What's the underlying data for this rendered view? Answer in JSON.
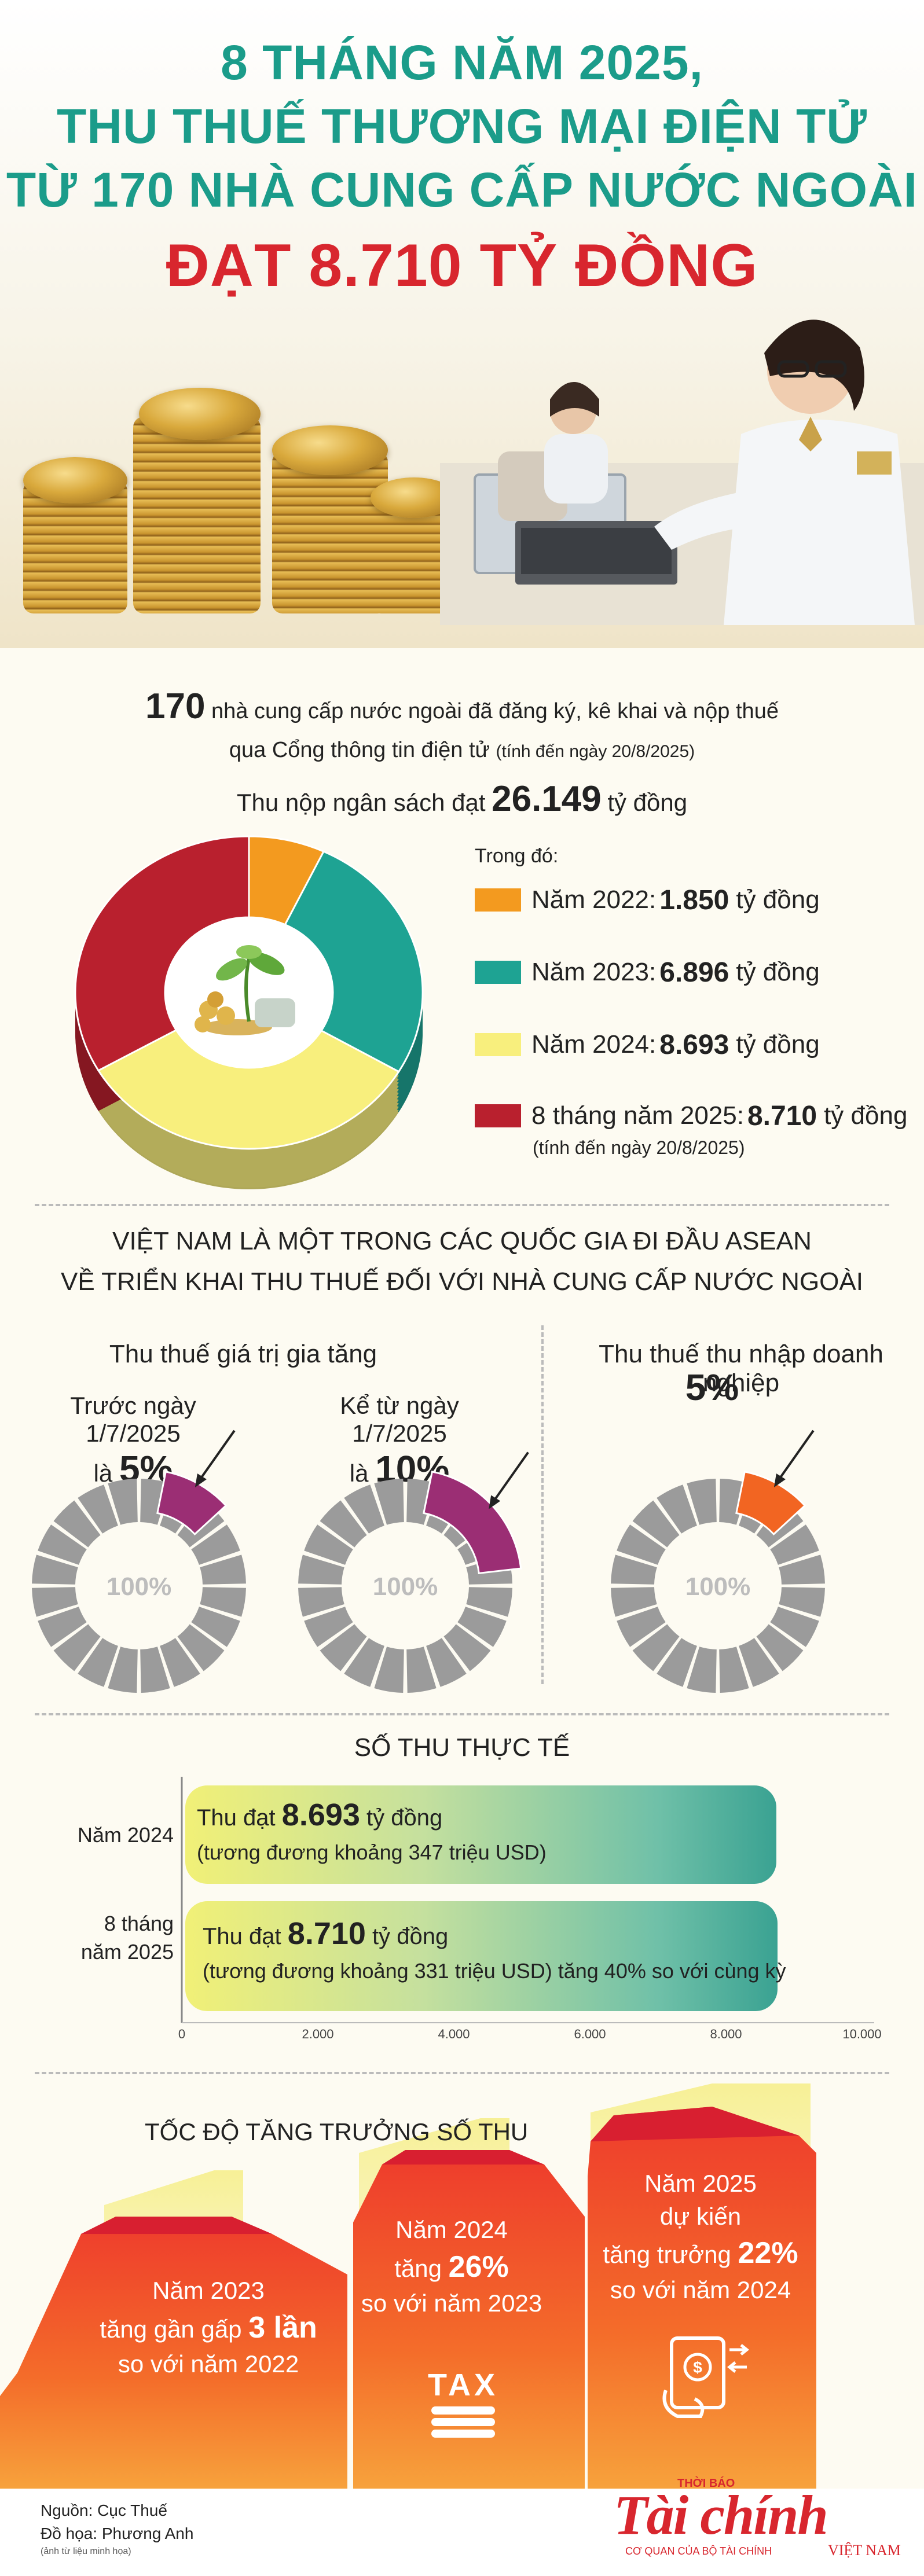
{
  "header": {
    "title_lines": [
      "8 THÁNG NĂM 2025,",
      "THU THUẾ THƯƠNG MẠI ĐIỆN TỬ",
      "TỪ 170 NHÀ CUNG CẤP NƯỚC NGOÀI"
    ],
    "headline": "ĐẠT 8.710 TỶ ĐỒNG"
  },
  "intro": {
    "count": "170",
    "line1_rest": "nhà cung cấp nước ngoài đã đăng ký, kê khai và nộp thuế",
    "line2": "qua Cổng thông tin điện tử",
    "line2_note": "(tính đến ngày 20/8/2025)",
    "revenue_prefix": "Thu nộp ngân sách đạt",
    "revenue_value": "26.149",
    "revenue_unit": "tỷ đồng"
  },
  "chart_data": {
    "type": "pie",
    "title": "",
    "categories": [
      "Năm 2022",
      "Năm 2023",
      "Năm 2024",
      "8 tháng năm 2025"
    ],
    "values": [
      1850,
      6896,
      8693,
      8710
    ],
    "unit": "tỷ đồng",
    "colors": [
      "#f39a1f",
      "#1ea393",
      "#f8ef7d",
      "#b9202e"
    ]
  },
  "legend": {
    "heading": "Trong đó:",
    "items": [
      {
        "label": "Năm 2022:",
        "value": "1.850",
        "unit": "tỷ đồng"
      },
      {
        "label": "Năm 2023:",
        "value": "6.896",
        "unit": "tỷ đồng"
      },
      {
        "label": "Năm 2024:",
        "value": "8.693",
        "unit": "tỷ đồng"
      },
      {
        "label": "8 tháng năm 2025:",
        "value": "8.710",
        "unit": "tỷ đồng"
      }
    ],
    "note": "(tính đến ngày 20/8/2025)"
  },
  "asean": {
    "title_line1": "VIỆT NAM LÀ MỘT TRONG CÁC QUỐC GIA ĐI ĐẦU ASEAN",
    "title_line2": "VỀ TRIỂN KHAI THU THUẾ ĐỐI VỚI NHÀ CUNG CẤP NƯỚC NGOÀI",
    "vat_title": "Thu thuế giá trị gia tăng",
    "cit_title": "Thu thuế thu nhập doanh nghiệp",
    "donuts": [
      {
        "caption": "Trước ngày 1/7/2025",
        "prefix": "là",
        "rate": "5%",
        "center": "100%",
        "rate_value": 5,
        "color": "#9b2e74"
      },
      {
        "caption": "Kể từ ngày 1/7/2025",
        "prefix": "là",
        "rate": "10%",
        "center": "100%",
        "rate_value": 10,
        "color": "#9b2e74"
      },
      {
        "caption": "",
        "prefix": "",
        "rate": "5%",
        "center": "100%",
        "rate_value": 5,
        "color": "#f26522"
      }
    ]
  },
  "actual": {
    "title": "SỐ THU THỰC TẾ",
    "rows": [
      {
        "label": "Năm 2024",
        "prefix": "Thu đạt",
        "value": "8.693",
        "unit": "tỷ đồng",
        "sub": "(tương đương khoảng 347 triệu USD)",
        "amount": 8693
      },
      {
        "label": "8 tháng năm 2025",
        "prefix": "Thu đạt",
        "value": "8.710",
        "unit": "tỷ đồng",
        "sub": "(tương đương khoảng 331 triệu USD) tăng 40% so với cùng kỳ",
        "amount": 8710
      }
    ],
    "axis_ticks": [
      "0",
      "2.000",
      "4.000",
      "6.000",
      "8.000",
      "10.000"
    ],
    "axis_max": 10000
  },
  "growth": {
    "title": "TỐC ĐỘ TĂNG TRƯỞNG SỐ THU",
    "items": [
      {
        "line1": "Năm 2023",
        "line2_pre": "tăng gần gấp",
        "line2_bold": "3 lần",
        "line3": "so với năm 2022"
      },
      {
        "line1": "Năm 2024",
        "line2_pre": "tăng",
        "line2_bold": "26%",
        "line3": "so với năm 2023"
      },
      {
        "line1": "Năm 2025",
        "line1b": "dự kiến",
        "line2_pre": "tăng trưởng",
        "line2_bold": "22%",
        "line3": "so với năm 2024"
      }
    ],
    "tax_icon_text": "TAX"
  },
  "footer": {
    "source": "Nguồn: Cục Thuế",
    "design": "Đồ họa: Phương Anh",
    "photo_note": "(ảnh từ liệu minh họa)",
    "brand_small": "THỜI BÁO",
    "brand": "Tài chính",
    "brand_sub": "CƠ QUAN CỦA BỘ TÀI CHÍNH",
    "brand_country": "VIỆT NAM"
  }
}
